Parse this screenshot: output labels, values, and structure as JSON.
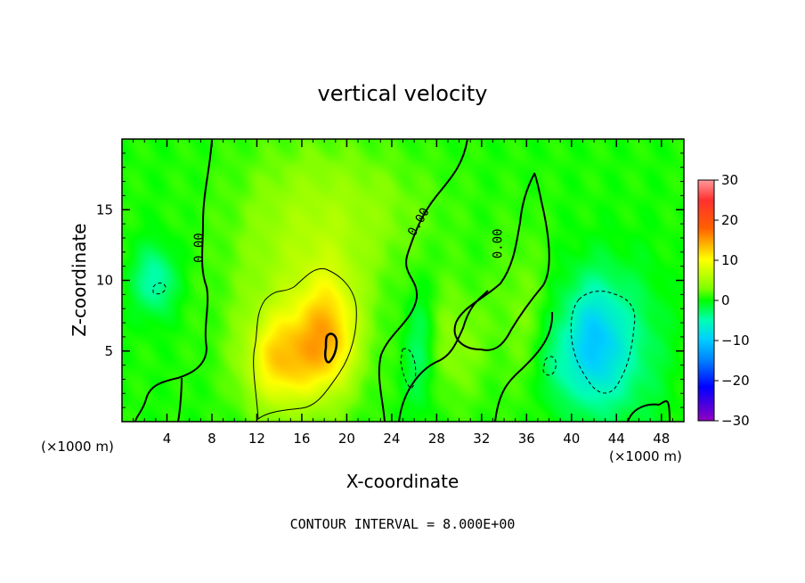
{
  "chart_data": {
    "type": "heatmap",
    "title": "vertical velocity",
    "xlabel": "X-coordinate",
    "ylabel": "Z-coordinate",
    "x_unit_left": "(×1000 m)",
    "x_unit_right": "(×1000 m)",
    "xlim": [
      0,
      50
    ],
    "ylim": [
      0,
      20
    ],
    "xticks": [
      4,
      8,
      12,
      16,
      20,
      24,
      28,
      32,
      36,
      40,
      44,
      48
    ],
    "xtick_labels": [
      "4",
      "8",
      "12",
      "16",
      "20",
      "24",
      "28",
      "32",
      "36",
      "40",
      "44",
      "48"
    ],
    "yticks": [
      5,
      10,
      15
    ],
    "ytick_labels": [
      "5",
      "10",
      "15"
    ],
    "colorbar": {
      "min": -30,
      "max": 30,
      "ticks": [
        30,
        20,
        10,
        0,
        -10,
        -20,
        -30
      ],
      "tick_labels": [
        "30",
        "20",
        "10",
        "0",
        "−10",
        "−20",
        "−30"
      ]
    },
    "contour_labels": [
      {
        "text": "0.00",
        "x": 7.2,
        "y": 12.3
      },
      {
        "text": "0.00",
        "x": 26.7,
        "y": 14.0
      },
      {
        "text": "0.00",
        "x": 33.8,
        "y": 12.6
      }
    ],
    "footer": "CONTOUR INTERVAL = 8.000E+00",
    "field_features": [
      {
        "x": 2.9,
        "y": 10.0,
        "sx": 1.3,
        "sy": 1.7,
        "v": -6
      },
      {
        "x": 16.0,
        "y": 11.5,
        "sx": 4.5,
        "sy": 5.5,
        "v": 4
      },
      {
        "x": 18.4,
        "y": 6.3,
        "sx": 1.9,
        "sy": 3.0,
        "v": 9
      },
      {
        "x": 15.0,
        "y": 4.5,
        "sx": 2.8,
        "sy": 2.5,
        "v": 7
      },
      {
        "x": 13.6,
        "y": 4.0,
        "sx": 1.8,
        "sy": 2.5,
        "v": 4
      },
      {
        "x": 26.5,
        "y": 5.0,
        "sx": 1.0,
        "sy": 3.0,
        "v": -4
      },
      {
        "x": 29.5,
        "y": 5.5,
        "sx": 2.0,
        "sy": 3.0,
        "v": 3
      },
      {
        "x": 35.5,
        "y": 8.0,
        "sx": 1.8,
        "sy": 4.0,
        "v": 2
      },
      {
        "x": 38.5,
        "y": 4.0,
        "sx": 1.0,
        "sy": 2.0,
        "v": -3
      },
      {
        "x": 42.0,
        "y": 5.5,
        "sx": 2.0,
        "sy": 3.2,
        "v": -11
      },
      {
        "x": 46.0,
        "y": 5.0,
        "sx": 2.0,
        "sy": 4.0,
        "v": -3
      },
      {
        "x": 22.0,
        "y": 15.0,
        "sx": 5.0,
        "sy": 3.0,
        "v": 2
      }
    ]
  }
}
